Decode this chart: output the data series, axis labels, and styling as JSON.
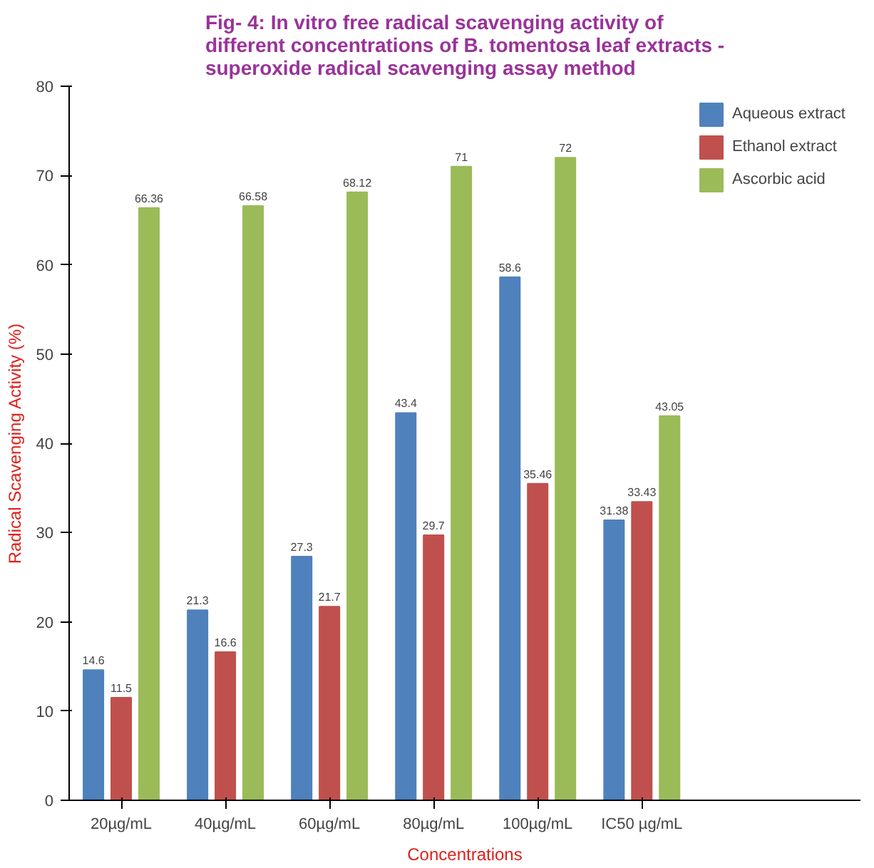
{
  "chart_data": {
    "type": "bar",
    "title": "Fig- 4: In vitro free radical scavenging activity of different concentrations of B. tomentosa leaf extracts - superoxide radical scavenging assay method",
    "xlabel": "Concentrations",
    "ylabel": "Radical Scavenging Activity (%)",
    "categories": [
      "20µg/mL",
      "40µg/mL",
      "60µg/mL",
      "80µg/mL",
      "100µg/mL",
      "IC50 µg/mL"
    ],
    "series": [
      {
        "name": "Aqueous extract",
        "color": "#4f81bd",
        "values": [
          14.6,
          21.3,
          27.3,
          43.4,
          58.6,
          31.38
        ]
      },
      {
        "name": "Ethanol extract",
        "color": "#c0504d",
        "values": [
          11.5,
          16.6,
          21.7,
          29.7,
          35.46,
          33.43
        ]
      },
      {
        "name": "Ascorbic acid",
        "color": "#9bbb59",
        "values": [
          66.36,
          66.58,
          68.12,
          71,
          72,
          43.05
        ]
      }
    ],
    "ylim": [
      0,
      80
    ],
    "yticks": [
      0,
      10,
      20,
      30,
      40,
      50,
      60,
      70,
      80
    ],
    "data_labels": true,
    "legend": "top right",
    "grid": false
  }
}
